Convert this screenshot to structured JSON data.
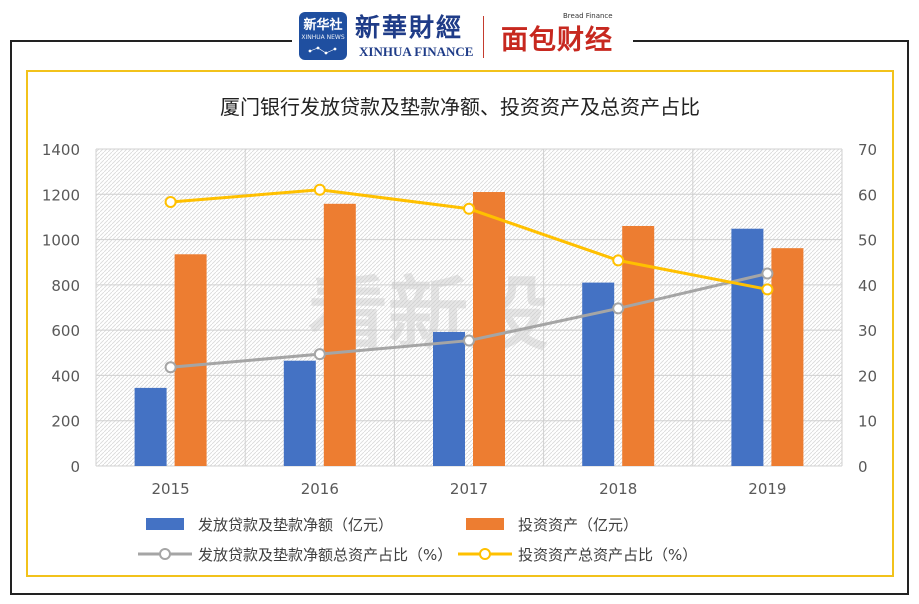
{
  "logos": {
    "xinhua_badge_cn": "新华社",
    "xinhua_badge_en": "XINHUA NEWS",
    "xinhua_finance_cn": "新華財經",
    "xinhua_finance_en": "XINHUA FINANCE",
    "bread_finance_en": "Bread Finance",
    "bread_finance_cn": "面包财经"
  },
  "watermark": "看新股",
  "colors": {
    "frame": "#222222",
    "chart_border": "#f2c21b",
    "bar_loans": "#4472c4",
    "bar_investment": "#ed7d31",
    "line_loans_ratio": "#a5a5a5",
    "line_investment_ratio": "#ffc000"
  },
  "chart_data": {
    "type": "bar",
    "title": "厦门银行发放贷款及垫款净额、投资资产及总资产占比",
    "categories": [
      "2015",
      "2016",
      "2017",
      "2018",
      "2019"
    ],
    "y_left": {
      "min": 0,
      "max": 1400,
      "ticks": [
        "0",
        "200",
        "400",
        "600",
        "800",
        "1000",
        "1200",
        "1400"
      ]
    },
    "y_right": {
      "min": 0,
      "max": 70,
      "ticks": [
        "0",
        "10",
        "20",
        "30",
        "40",
        "50",
        "60",
        "70"
      ]
    },
    "grid": true,
    "legend_position": "bottom",
    "series": [
      {
        "name": "发放贷款及垫款净额（亿元）",
        "type": "bar",
        "axis": "left",
        "values": [
          345,
          465,
          592,
          810,
          1048
        ]
      },
      {
        "name": "投资资产（亿元）",
        "type": "bar",
        "axis": "left",
        "values": [
          935,
          1158,
          1210,
          1060,
          962
        ]
      },
      {
        "name": "发放贷款及垫款净额总资产占比（%）",
        "type": "line",
        "axis": "right",
        "values": [
          21.8,
          24.7,
          27.7,
          34.8,
          42.5
        ]
      },
      {
        "name": "投资资产总资产占比（%）",
        "type": "line",
        "axis": "right",
        "values": [
          58.3,
          61.0,
          56.8,
          45.4,
          39.0
        ]
      }
    ]
  }
}
